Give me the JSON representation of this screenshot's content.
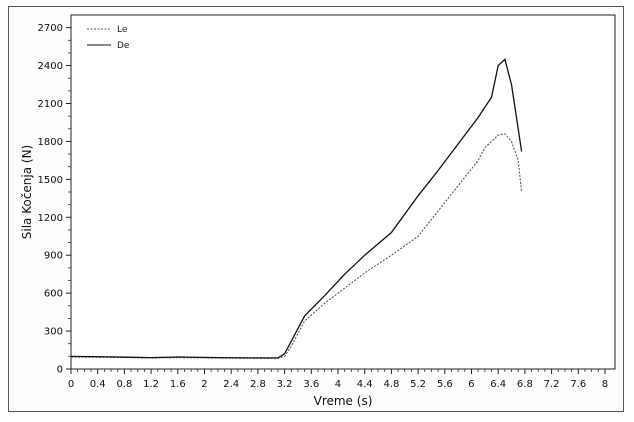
{
  "chart_data": {
    "type": "line",
    "title": "",
    "xlabel": "Vreme (s)",
    "ylabel": "Sila Kočenja (N)",
    "xlim": [
      0,
      8.15
    ],
    "ylim": [
      0,
      2800
    ],
    "x_ticks": [
      0,
      0.4,
      0.8,
      1.2,
      1.6,
      2,
      2.4,
      2.8,
      3.2,
      3.6,
      4,
      4.4,
      4.8,
      5.2,
      5.6,
      6,
      6.4,
      6.8,
      7.2,
      7.6,
      8
    ],
    "x_tick_labels": [
      "0",
      "0.4",
      "0.8",
      "1.2",
      "1.6",
      "2",
      "2.4",
      "2.8",
      "3.2",
      "3.6",
      "4",
      "4.4",
      "4.8",
      "5.2",
      "5.6",
      "6",
      "6.4",
      "6.8",
      "7.2",
      "7.6",
      "8"
    ],
    "y_ticks": [
      0,
      300,
      600,
      900,
      1200,
      1500,
      1800,
      2100,
      2400,
      2700
    ],
    "y_tick_labels": [
      "0",
      "300",
      "600",
      "900",
      "1200",
      "1500",
      "1800",
      "2100",
      "2400",
      "2700"
    ],
    "grid": false,
    "legend_position": "top-left",
    "series": [
      {
        "name": "Le",
        "style": "dotted",
        "color": "#555555",
        "x": [
          0,
          0.6,
          1.2,
          1.6,
          2.2,
          2.8,
          3.1,
          3.2,
          3.3,
          3.5,
          3.8,
          4.1,
          4.4,
          4.8,
          5.2,
          5.5,
          5.8,
          6.1,
          6.2,
          6.4,
          6.5,
          6.6,
          6.7,
          6.75
        ],
        "y": [
          95,
          92,
          88,
          90,
          87,
          85,
          85,
          100,
          180,
          380,
          520,
          640,
          760,
          900,
          1050,
          1250,
          1450,
          1650,
          1750,
          1850,
          1860,
          1800,
          1650,
          1400
        ]
      },
      {
        "name": "De",
        "style": "solid",
        "color": "#111111",
        "x": [
          0,
          0.6,
          1.2,
          1.6,
          2.2,
          2.8,
          3.1,
          3.2,
          3.3,
          3.5,
          3.8,
          4.1,
          4.4,
          4.8,
          5.2,
          5.5,
          5.8,
          6.1,
          6.3,
          6.4,
          6.5,
          6.6,
          6.7,
          6.75
        ],
        "y": [
          100,
          96,
          90,
          95,
          90,
          88,
          88,
          120,
          220,
          420,
          580,
          750,
          900,
          1080,
          1370,
          1570,
          1780,
          1990,
          2150,
          2400,
          2450,
          2250,
          1900,
          1720
        ]
      }
    ]
  }
}
